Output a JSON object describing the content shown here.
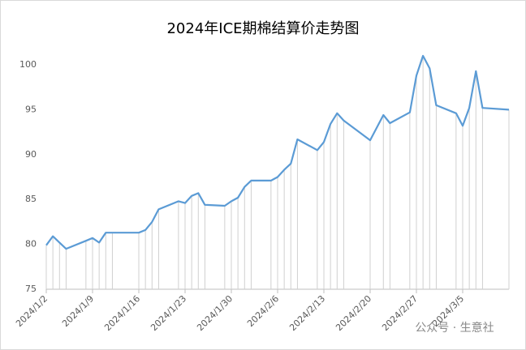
{
  "chart_data": {
    "type": "line",
    "title": "2024年ICE期棉结算价走势图",
    "x": [
      "2024/1/2",
      "2024/1/3",
      "2024/1/4",
      "2024/1/5",
      "2024/1/8",
      "2024/1/9",
      "2024/1/10",
      "2024/1/11",
      "2024/1/12",
      "2024/1/16",
      "2024/1/17",
      "2024/1/18",
      "2024/1/19",
      "2024/1/22",
      "2024/1/23",
      "2024/1/24",
      "2024/1/25",
      "2024/1/26",
      "2024/1/29",
      "2024/1/30",
      "2024/1/31",
      "2024/2/1",
      "2024/2/2",
      "2024/2/5",
      "2024/2/6",
      "2024/2/7",
      "2024/2/8",
      "2024/2/9",
      "2024/2/12",
      "2024/2/13",
      "2024/2/14",
      "2024/2/15",
      "2024/2/16",
      "2024/2/20",
      "2024/2/22",
      "2024/2/23",
      "2024/2/26",
      "2024/2/27",
      "2024/2/28",
      "2024/2/29",
      "2024/3/1",
      "2024/3/4",
      "2024/3/5",
      "2024/3/6",
      "2024/3/7",
      "2024/3/8",
      "2024/3/12"
    ],
    "series": [
      {
        "color": "#5b9bd5",
        "values": [
          79.9,
          80.9,
          80.2,
          79.5,
          80.4,
          80.7,
          80.2,
          81.3,
          81.3,
          81.3,
          81.6,
          82.5,
          83.9,
          84.8,
          84.6,
          85.4,
          85.7,
          84.4,
          84.3,
          84.8,
          85.2,
          86.4,
          87.1,
          87.1,
          87.5,
          88.3,
          89.0,
          91.7,
          90.5,
          91.4,
          93.4,
          94.6,
          93.8,
          91.6,
          94.4,
          93.5,
          94.7,
          98.8,
          101.0,
          99.6,
          95.5,
          94.6,
          93.2,
          95.2,
          99.3,
          95.2,
          95.0
        ]
      }
    ],
    "xlim": [
      "2024/1/2",
      "2024/3/12"
    ],
    "xticks": [
      "2024/1/2",
      "2024/1/9",
      "2024/1/16",
      "2024/1/23",
      "2024/1/30",
      "2024/2/6",
      "2024/2/13",
      "2024/2/20",
      "2024/2/27",
      "2024/3/5"
    ],
    "ylim": [
      75,
      100
    ],
    "yticks": [
      75,
      80,
      85,
      90,
      95,
      100
    ],
    "drop_lines": true,
    "watermark": "公众号 · 生意社"
  }
}
